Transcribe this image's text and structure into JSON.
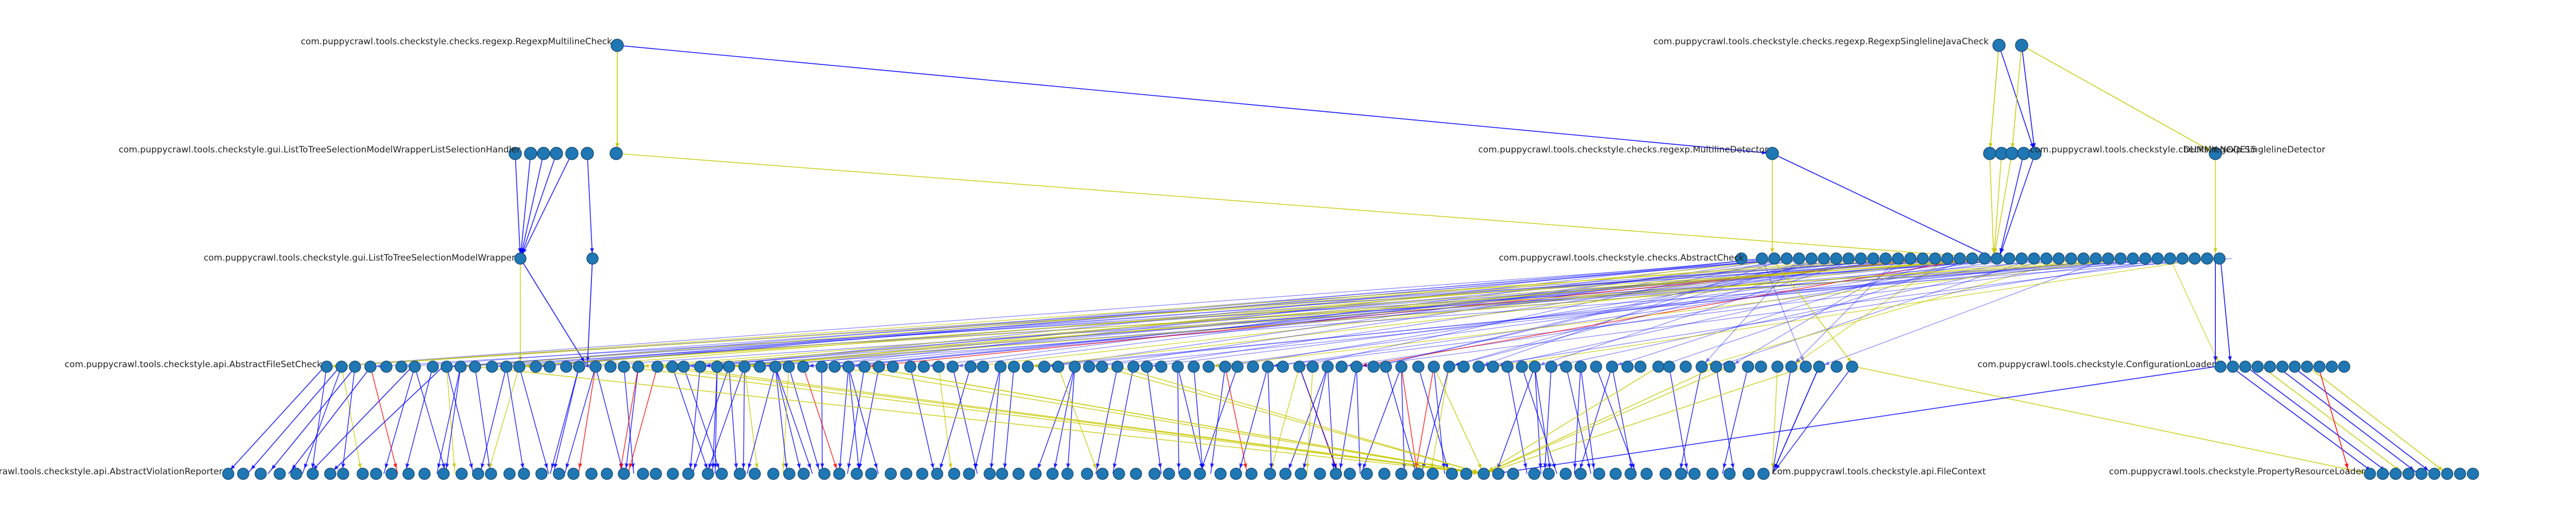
{
  "graph": {
    "colors": {
      "node_fill": "#1f77b4",
      "edge_blue": "#0000ff",
      "edge_yellow": "#c8c800",
      "edge_red": "#ff0000",
      "label": "#222222"
    },
    "labels": {
      "top_left": "com.puppycrawl.tools.checkstyle.checks.regexp.RegexpMultilineCheck",
      "top_right": "com.puppycrawl.tools.checkstyle.checks.regexp.RegexpSinglelineJavaCheck",
      "layer2_left": "com.puppycrawl.tools.checkstyle.gui.ListToTreeSelectionModelWrapperListSelectionHandler",
      "layer2_mid": "com.puppycrawl.tools.checkstyle.checks.regexp.MultilineDetector",
      "layer2_right": "com.puppycrawl.tools.checkstyle.checks.regexp.SinglelineDetector",
      "layer2_dummy": "DUMMY NODE15",
      "layer3_left": "com.puppycrawl.tools.checkstyle.gui.ListToTreeSelectionModelWrapper",
      "layer3_right": "com.puppycrawl.tools.checkstyle.checks.AbstractCheck",
      "layer4_left": "com.puppycrawl.tools.checkstyle.api.AbstractFileSetCheck",
      "layer4_right": "com.puppycrawl.tools.checkstyle.ConfigurationLoader",
      "layer5_left": "com.puppycrawl.tools.checkstyle.api.AbstractViolationReporter",
      "layer5_mid": "com.puppycrawl.tools.checkstyle.api.FileContext",
      "layer5_right": "com.puppycrawl.tools.checkstyle.PropertyResourceLoader"
    }
  }
}
